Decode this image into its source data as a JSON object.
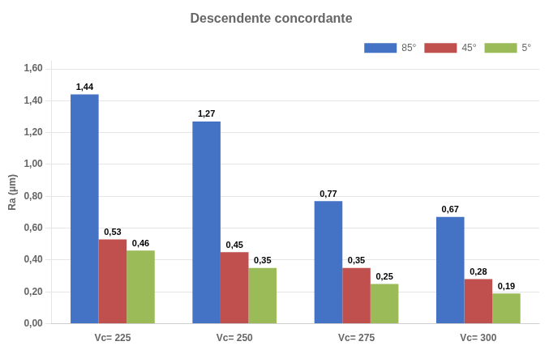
{
  "chart_data": {
    "type": "bar",
    "title": "Descendente concordante",
    "y_label": "Ra (μm)",
    "categories": [
      "Vc= 225",
      "Vc= 250",
      "Vc= 275",
      "Vc= 300"
    ],
    "series": [
      {
        "name": "85°",
        "color": "#4472C4",
        "values": [
          1.44,
          1.27,
          0.77,
          0.67
        ],
        "value_labels": [
          "1,44",
          "1,27",
          "0,77",
          "0,67"
        ]
      },
      {
        "name": "45°",
        "color": "#C0504D",
        "values": [
          0.53,
          0.45,
          0.35,
          0.28
        ],
        "value_labels": [
          "0,53",
          "0,45",
          "0,35",
          "0,28"
        ]
      },
      {
        "name": "5°",
        "color": "#9BBB59",
        "values": [
          0.46,
          0.35,
          0.25,
          0.19
        ],
        "value_labels": [
          "0,46",
          "0,35",
          "0,25",
          "0,19"
        ]
      }
    ],
    "ylim": [
      0.0,
      1.65
    ],
    "yticks": [
      {
        "value": 0.0,
        "label": "0,00"
      },
      {
        "value": 0.2,
        "label": "0,20"
      },
      {
        "value": 0.4,
        "label": "0,40"
      },
      {
        "value": 0.6,
        "label": "0,60"
      },
      {
        "value": 0.8,
        "label": "0,80"
      },
      {
        "value": 1.0,
        "label": "1,00"
      },
      {
        "value": 1.2,
        "label": "1,20"
      },
      {
        "value": 1.4,
        "label": "1,40"
      },
      {
        "value": 1.6,
        "label": "1,60"
      }
    ],
    "grid": true,
    "legend": "upper right",
    "data_labels": true
  }
}
